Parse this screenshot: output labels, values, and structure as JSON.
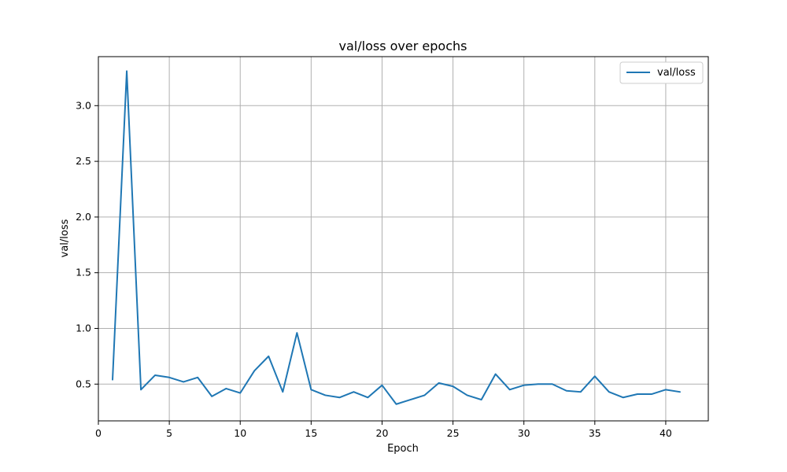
{
  "chart_data": {
    "type": "line",
    "title": "val/loss over epochs",
    "xlabel": "Epoch",
    "ylabel": "val/loss",
    "xlim": [
      -0.0,
      43.0
    ],
    "ylim": [
      0.17,
      3.44
    ],
    "xticks": [
      0,
      5,
      10,
      15,
      20,
      25,
      30,
      35,
      40
    ],
    "yticks": [
      0.5,
      1.0,
      1.5,
      2.0,
      2.5,
      3.0
    ],
    "xtick_labels": [
      "0",
      "5",
      "10",
      "15",
      "20",
      "25",
      "30",
      "35",
      "40"
    ],
    "ytick_labels": [
      "0.5",
      "1.0",
      "1.5",
      "2.0",
      "2.5",
      "3.0"
    ],
    "grid": true,
    "legend_position": "top-right",
    "series": [
      {
        "name": "val/loss",
        "color": "#1f77b4",
        "x": [
          1,
          2,
          3,
          4,
          5,
          6,
          7,
          8,
          9,
          10,
          11,
          12,
          13,
          14,
          15,
          16,
          17,
          18,
          19,
          20,
          21,
          22,
          23,
          24,
          25,
          26,
          27,
          28,
          29,
          30,
          31,
          32,
          33,
          34,
          35,
          36,
          37,
          38,
          39,
          40,
          41
        ],
        "y": [
          0.54,
          3.31,
          0.45,
          0.58,
          0.56,
          0.52,
          0.56,
          0.39,
          0.46,
          0.42,
          0.62,
          0.75,
          0.43,
          0.96,
          0.45,
          0.4,
          0.38,
          0.43,
          0.38,
          0.49,
          0.32,
          0.36,
          0.4,
          0.51,
          0.48,
          0.4,
          0.36,
          0.59,
          0.45,
          0.49,
          0.5,
          0.5,
          0.44,
          0.43,
          0.57,
          0.43,
          0.38,
          0.41,
          0.41,
          0.45,
          0.43
        ]
      }
    ]
  }
}
